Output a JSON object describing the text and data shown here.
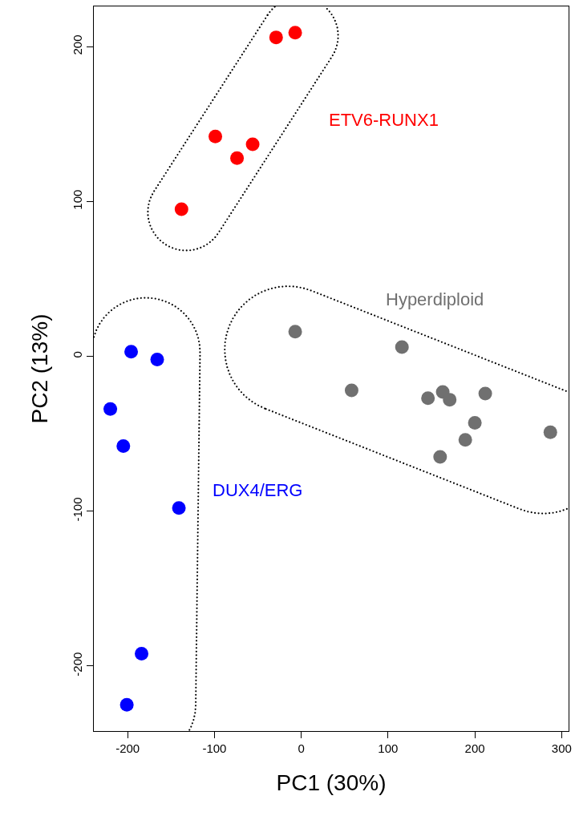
{
  "chart_data": {
    "type": "scatter",
    "xlabel": "PC1 (30%)",
    "ylabel": "PC2 (13%)",
    "xlim": [
      -239,
      308
    ],
    "ylim": [
      -242,
      226
    ],
    "xticks": [
      -200,
      -100,
      0,
      100,
      200,
      300
    ],
    "yticks": [
      -200,
      -100,
      0,
      100,
      200
    ],
    "grid": false,
    "legend": false,
    "marker": "circle",
    "series": [
      {
        "name": "ETV6-RUNX1",
        "color": "#ff0000",
        "x": [
          -29,
          -7,
          -99,
          -74,
          -56,
          -138
        ],
        "values": [
          206,
          209,
          142,
          128,
          137,
          95
        ]
      },
      {
        "name": "DUX4/ERG",
        "color": "#0000ff",
        "x": [
          -196,
          -166,
          -220,
          -205,
          -141,
          -184,
          -201
        ],
        "values": [
          3,
          -2,
          -34,
          -58,
          -98,
          -192,
          -225
        ]
      },
      {
        "name": "Hyperdiploid",
        "color": "#707070",
        "x": [
          -7,
          58,
          116,
          146,
          163,
          171,
          212,
          200,
          189,
          160,
          287
        ],
        "values": [
          16,
          -22,
          6,
          -27,
          -23,
          -28,
          -24,
          -43,
          -54,
          -65,
          -49
        ]
      }
    ]
  }
}
